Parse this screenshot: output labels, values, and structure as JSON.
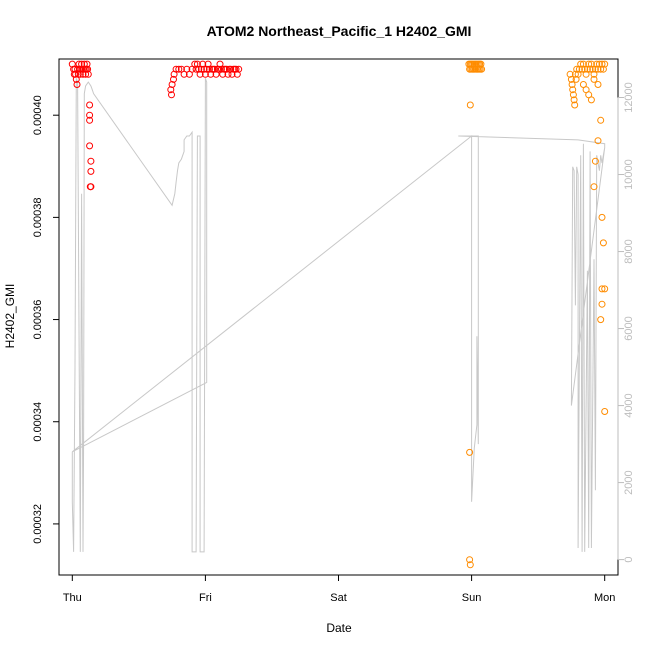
{
  "chart_data": {
    "type": "scatter",
    "title": "ATOM2 Northeast_Pacific_1 H2402_GMI",
    "xlabel": "Date",
    "ylabel": "H2402_GMI",
    "x_unit": "days since Thu 00:00",
    "xlim": [
      -0.1,
      4.1
    ],
    "x_ticks": [
      {
        "label": "Thu",
        "value": 0
      },
      {
        "label": "Fri",
        "value": 1
      },
      {
        "label": "Sat",
        "value": 2
      },
      {
        "label": "Sun",
        "value": 3
      },
      {
        "label": "Mon",
        "value": 4
      }
    ],
    "ylim_left": [
      0.00031,
      0.000411
    ],
    "y_ticks_left": [
      "0.00032",
      "0.00034",
      "0.00036",
      "0.00038",
      "0.00040"
    ],
    "y_tick_values_left": [
      0.00032,
      0.00034,
      0.00036,
      0.00038,
      0.0004
    ],
    "ylim_right": [
      -400,
      13000
    ],
    "y_ticks_right": [
      "0",
      "2000",
      "4000",
      "6000",
      "8000",
      "10000",
      "12000"
    ],
    "y_tick_values_right": [
      0,
      2000,
      4000,
      6000,
      8000,
      10000,
      12000
    ],
    "grid": false,
    "series": [
      {
        "color": "#ff0000",
        "axis": "left",
        "points": [
          [
            0.0,
            0.00041
          ],
          [
            0.01,
            0.000409
          ],
          [
            0.015,
            0.000408
          ],
          [
            0.02,
            0.000409
          ],
          [
            0.025,
            0.000408
          ],
          [
            0.03,
            0.000407
          ],
          [
            0.035,
            0.000406
          ],
          [
            0.04,
            0.000409
          ],
          [
            0.045,
            0.000408
          ],
          [
            0.05,
            0.00041
          ],
          [
            0.055,
            0.000409
          ],
          [
            0.06,
            0.000408
          ],
          [
            0.065,
            0.000409
          ],
          [
            0.07,
            0.00041
          ],
          [
            0.075,
            0.000409
          ],
          [
            0.08,
            0.000408
          ],
          [
            0.085,
            0.000409
          ],
          [
            0.09,
            0.00041
          ],
          [
            0.095,
            0.000409
          ],
          [
            0.1,
            0.000408
          ],
          [
            0.105,
            0.000409
          ],
          [
            0.11,
            0.00041
          ],
          [
            0.115,
            0.000409
          ],
          [
            0.12,
            0.000408
          ],
          [
            0.13,
            0.000402
          ],
          [
            0.13,
            0.0004
          ],
          [
            0.13,
            0.000399
          ],
          [
            0.13,
            0.000394
          ],
          [
            0.14,
            0.000391
          ],
          [
            0.14,
            0.000389
          ],
          [
            0.14,
            0.000386
          ],
          [
            0.135,
            0.000386
          ],
          [
            0.74,
            0.000405
          ],
          [
            0.745,
            0.000404
          ],
          [
            0.75,
            0.000406
          ],
          [
            0.76,
            0.000407
          ],
          [
            0.765,
            0.000408
          ],
          [
            0.78,
            0.000409
          ],
          [
            0.8,
            0.000409
          ],
          [
            0.82,
            0.000409
          ],
          [
            0.84,
            0.000408
          ],
          [
            0.86,
            0.000409
          ],
          [
            0.88,
            0.000408
          ],
          [
            0.9,
            0.000409
          ],
          [
            0.92,
            0.00041
          ],
          [
            0.93,
            0.000409
          ],
          [
            0.94,
            0.00041
          ],
          [
            0.95,
            0.000409
          ],
          [
            0.96,
            0.000408
          ],
          [
            0.97,
            0.000409
          ],
          [
            0.98,
            0.00041
          ],
          [
            0.99,
            0.000409
          ],
          [
            1.0,
            0.000408
          ],
          [
            1.01,
            0.000409
          ],
          [
            1.02,
            0.00041
          ],
          [
            1.03,
            0.000409
          ],
          [
            1.04,
            0.000408
          ],
          [
            1.05,
            0.000409
          ],
          [
            1.06,
            0.000409
          ],
          [
            1.07,
            0.000409
          ],
          [
            1.08,
            0.000408
          ],
          [
            1.09,
            0.000409
          ],
          [
            1.1,
            0.000409
          ],
          [
            1.11,
            0.00041
          ],
          [
            1.12,
            0.000409
          ],
          [
            1.13,
            0.000408
          ],
          [
            1.14,
            0.000409
          ],
          [
            1.15,
            0.000409
          ],
          [
            1.16,
            0.000409
          ],
          [
            1.17,
            0.000408
          ],
          [
            1.18,
            0.000409
          ],
          [
            1.19,
            0.000409
          ],
          [
            1.2,
            0.000408
          ],
          [
            1.21,
            0.000409
          ],
          [
            1.22,
            0.000409
          ],
          [
            1.23,
            0.000409
          ],
          [
            1.24,
            0.000408
          ],
          [
            1.25,
            0.000409
          ]
        ]
      },
      {
        "color": "#ff8c00",
        "axis": "left",
        "points": [
          [
            2.98,
            0.00041
          ],
          [
            2.985,
            0.000409
          ],
          [
            2.99,
            0.00041
          ],
          [
            2.995,
            0.000409
          ],
          [
            3.0,
            0.00041
          ],
          [
            3.005,
            0.000409
          ],
          [
            3.01,
            0.00041
          ],
          [
            3.015,
            0.000409
          ],
          [
            3.02,
            0.00041
          ],
          [
            3.025,
            0.000409
          ],
          [
            3.03,
            0.00041
          ],
          [
            3.035,
            0.000409
          ],
          [
            3.04,
            0.00041
          ],
          [
            3.045,
            0.000409
          ],
          [
            3.05,
            0.00041
          ],
          [
            3.055,
            0.000409
          ],
          [
            3.06,
            0.00041
          ],
          [
            3.065,
            0.000409
          ],
          [
            3.07,
            0.00041
          ],
          [
            3.075,
            0.000409
          ],
          [
            2.99,
            0.000402
          ],
          [
            2.985,
            0.000334
          ],
          [
            2.985,
            0.000313
          ],
          [
            2.99,
            0.000312
          ],
          [
            3.74,
            0.000408
          ],
          [
            3.75,
            0.000407
          ],
          [
            3.755,
            0.000406
          ],
          [
            3.76,
            0.000405
          ],
          [
            3.765,
            0.000404
          ],
          [
            3.77,
            0.000403
          ],
          [
            3.775,
            0.000402
          ],
          [
            3.78,
            0.000408
          ],
          [
            3.785,
            0.000407
          ],
          [
            3.79,
            0.000409
          ],
          [
            3.8,
            0.000408
          ],
          [
            3.81,
            0.000409
          ],
          [
            3.82,
            0.00041
          ],
          [
            3.83,
            0.000409
          ],
          [
            3.84,
            0.00041
          ],
          [
            3.85,
            0.000409
          ],
          [
            3.86,
            0.000408
          ],
          [
            3.87,
            0.000409
          ],
          [
            3.88,
            0.00041
          ],
          [
            3.89,
            0.000409
          ],
          [
            3.9,
            0.00041
          ],
          [
            3.91,
            0.000409
          ],
          [
            3.92,
            0.000408
          ],
          [
            3.93,
            0.000409
          ],
          [
            3.94,
            0.00041
          ],
          [
            3.95,
            0.000409
          ],
          [
            3.96,
            0.00041
          ],
          [
            3.97,
            0.000409
          ],
          [
            3.98,
            0.00041
          ],
          [
            3.99,
            0.000409
          ],
          [
            4.0,
            0.00041
          ],
          [
            3.84,
            0.000406
          ],
          [
            3.86,
            0.000405
          ],
          [
            3.88,
            0.000404
          ],
          [
            3.9,
            0.000403
          ],
          [
            3.92,
            0.000407
          ],
          [
            3.95,
            0.000406
          ],
          [
            3.97,
            0.000399
          ],
          [
            3.95,
            0.000395
          ],
          [
            3.93,
            0.000391
          ],
          [
            3.92,
            0.000386
          ],
          [
            3.98,
            0.00038
          ],
          [
            3.99,
            0.000375
          ],
          [
            3.98,
            0.000366
          ],
          [
            4.0,
            0.000366
          ],
          [
            3.98,
            0.000363
          ],
          [
            3.97,
            0.00036
          ],
          [
            4.0,
            0.000342
          ]
        ]
      },
      {
        "color": "#c8c8c8",
        "axis": "right",
        "kind": "line",
        "points": [
          [
            0.0,
            2800
          ],
          [
            0.0,
            1500
          ],
          [
            0.01,
            200
          ],
          [
            0.02,
            5000
          ],
          [
            0.03,
            12500
          ],
          [
            0.04,
            12400
          ],
          [
            0.05,
            6000
          ],
          [
            0.06,
            200
          ],
          [
            0.07,
            9500
          ],
          [
            0.08,
            200
          ],
          [
            0.085,
            3000
          ],
          [
            0.09,
            12100
          ],
          [
            0.1,
            12300
          ],
          [
            0.12,
            12400
          ],
          [
            0.13,
            12350
          ],
          [
            0.14,
            12300
          ],
          [
            0.15,
            12200
          ],
          [
            0.16,
            12100
          ],
          [
            0.75,
            9200
          ],
          [
            0.77,
            9500
          ],
          [
            0.78,
            9800
          ],
          [
            0.79,
            10100
          ],
          [
            0.8,
            10300
          ],
          [
            0.82,
            10400
          ],
          [
            0.84,
            10600
          ],
          [
            0.84,
            10900
          ],
          [
            0.86,
            11000
          ],
          [
            0.88,
            11000
          ],
          [
            0.9,
            11100
          ],
          [
            0.9,
            200
          ],
          [
            0.93,
            200
          ],
          [
            0.94,
            11000
          ],
          [
            0.96,
            11000
          ],
          [
            0.96,
            200
          ],
          [
            0.99,
            200
          ],
          [
            1.0,
            12500
          ],
          [
            1.01,
            12400
          ],
          [
            1.01,
            4600
          ],
          [
            0.0,
            2800
          ],
          [
            3.0,
            11000
          ],
          [
            3.0,
            1500
          ],
          [
            3.02,
            2900
          ],
          [
            3.04,
            3500
          ],
          [
            3.04,
            5800
          ],
          [
            3.05,
            3000
          ],
          [
            3.05,
            11000
          ],
          [
            2.9,
            11000
          ],
          [
            3.8,
            10900
          ],
          [
            4.0,
            10800
          ],
          [
            4.0,
            10700
          ],
          [
            3.75,
            4000
          ],
          [
            3.76,
            10200
          ],
          [
            3.77,
            10100
          ],
          [
            3.78,
            6600
          ],
          [
            3.79,
            10200
          ],
          [
            3.8,
            10000
          ],
          [
            3.8,
            300
          ],
          [
            3.82,
            10500
          ],
          [
            3.83,
            200
          ],
          [
            3.84,
            10800
          ],
          [
            3.85,
            200
          ],
          [
            3.87,
            7500
          ],
          [
            3.88,
            300
          ],
          [
            3.89,
            10600
          ],
          [
            3.9,
            300
          ],
          [
            3.92,
            7800
          ],
          [
            3.93,
            1800
          ],
          [
            3.94,
            10500
          ],
          [
            3.96,
            10100
          ],
          [
            3.97,
            10500
          ],
          [
            3.98,
            10300
          ],
          [
            4.0,
            10700
          ]
        ]
      }
    ]
  }
}
